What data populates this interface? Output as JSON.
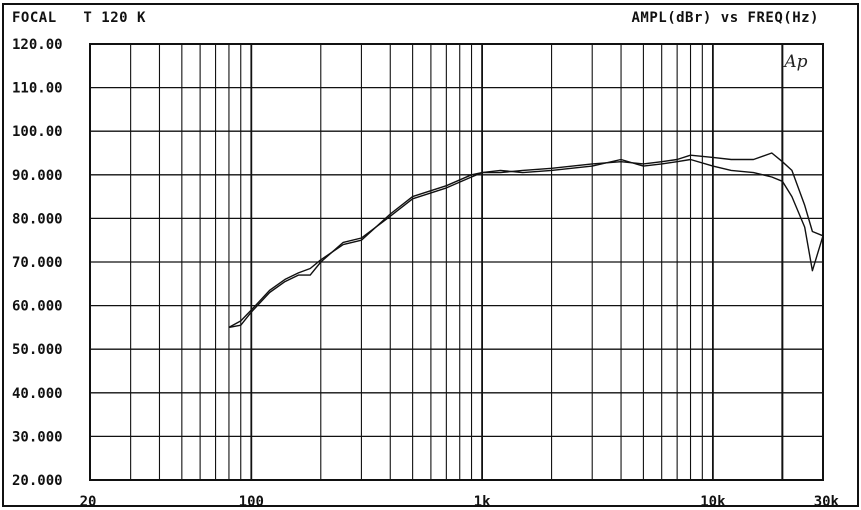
{
  "header": {
    "left": "FOCAL   T 120 K",
    "right": "AMPL(dBr) vs FREQ(Hz)"
  },
  "chart_data": {
    "type": "line",
    "title": "AMPL(dBr) vs FREQ(Hz)",
    "xscale": "log",
    "xlim": [
      20,
      30000
    ],
    "ylim": [
      20,
      120
    ],
    "grid": true,
    "marker_label": "Ap",
    "marker_x": 20000,
    "y_tick_labels": [
      "120.00",
      "110.00",
      "100.00",
      "90.000",
      "80.000",
      "70.000",
      "60.000",
      "50.000",
      "40.000",
      "30.000",
      "20.000"
    ],
    "y_tick_values": [
      120,
      110,
      100,
      90,
      80,
      70,
      60,
      50,
      40,
      30,
      20
    ],
    "x_tick_labels": [
      "20",
      "100",
      "1k",
      "10k",
      "30k"
    ],
    "x_tick_values": [
      20,
      100,
      1000,
      10000,
      30000
    ],
    "series": [
      {
        "x": [
          80,
          90,
          100,
          120,
          140,
          160,
          180,
          200,
          250,
          300,
          400,
          500,
          700,
          900,
          1000,
          1200,
          1500,
          2000,
          3000,
          4000,
          5000,
          6000,
          7000,
          8000,
          10000,
          12000,
          15000,
          18000,
          20000,
          22000,
          25000,
          27000,
          30000
        ],
        "values": [
          55,
          56.5,
          59,
          63.5,
          66,
          67.5,
          68.5,
          70.5,
          74,
          75,
          81,
          85,
          87.5,
          90,
          90.5,
          90.5,
          91,
          91.5,
          92.5,
          93,
          92.5,
          93,
          93.5,
          94.5,
          94,
          93.5,
          93.5,
          95,
          93,
          91,
          83,
          77,
          76
        ]
      },
      {
        "x": [
          80,
          90,
          100,
          120,
          140,
          160,
          180,
          200,
          250,
          300,
          400,
          500,
          700,
          900,
          1000,
          1200,
          1500,
          2000,
          3000,
          4000,
          5000,
          6000,
          7000,
          8000,
          10000,
          12000,
          15000,
          18000,
          20000,
          22000,
          25000,
          27000,
          30000
        ],
        "values": [
          55,
          55.5,
          58.5,
          63,
          65.5,
          67,
          67,
          70,
          74.5,
          75.5,
          80.5,
          84.5,
          87,
          89.5,
          90.5,
          91,
          90.5,
          91,
          92,
          93.5,
          92,
          92.5,
          93,
          93.5,
          92,
          91,
          90.5,
          89.5,
          88.5,
          85,
          78,
          68,
          76
        ]
      }
    ]
  }
}
